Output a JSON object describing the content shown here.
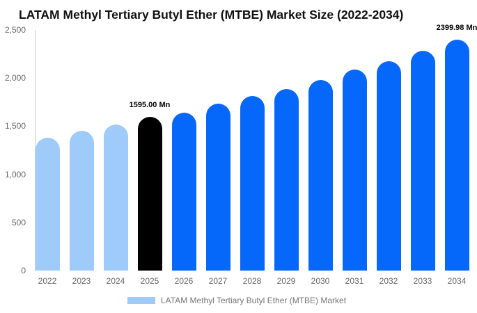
{
  "title": "LATAM Methyl Tertiary Butyl Ether (MTBE) Market Size (2022-2034)",
  "colors": {
    "historical_bar": "#9FCBFA",
    "highlight_bar": "#000000",
    "forecast_bar": "#0568FB",
    "axis_line": "#cccccc",
    "tick_text": "#666666",
    "legend_text": "#757575",
    "title_text": "#111111",
    "data_label_text": "#000000"
  },
  "legend": {
    "entries": [
      {
        "label": "LATAM Methyl Tertiary Butyl Ether (MTBE) Market",
        "color": "#9FCBFA"
      }
    ],
    "position": "bottom"
  },
  "chart_data": {
    "type": "bar",
    "title": "LATAM Methyl Tertiary Butyl Ether (MTBE) Market Size (2022-2034)",
    "xlabel": "",
    "ylabel": "",
    "unit": "Mn",
    "grid": false,
    "ylim": [
      0,
      2500
    ],
    "ytick_values": [
      0,
      500,
      1000,
      1500,
      2000,
      2500
    ],
    "ytick_labels": [
      "0",
      "500",
      "1,000",
      "1,500",
      "2,000",
      "2,500"
    ],
    "categories": [
      "2022",
      "2023",
      "2024",
      "2025",
      "2026",
      "2027",
      "2028",
      "2029",
      "2030",
      "2031",
      "2032",
      "2033",
      "2034"
    ],
    "values": [
      1378,
      1450,
      1515,
      1595,
      1640,
      1732,
      1816,
      1884,
      1980,
      2088,
      2177,
      2281,
      2399.98
    ],
    "bar_colors": [
      "#9FCBFA",
      "#9FCBFA",
      "#9FCBFA",
      "#000000",
      "#0568FB",
      "#0568FB",
      "#0568FB",
      "#0568FB",
      "#0568FB",
      "#0568FB",
      "#0568FB",
      "#0568FB",
      "#0568FB"
    ],
    "data_labels": [
      {
        "category": "2025",
        "text": "1595.00 Mn"
      },
      {
        "category": "2034",
        "text": "2399.98 Mn"
      }
    ]
  }
}
